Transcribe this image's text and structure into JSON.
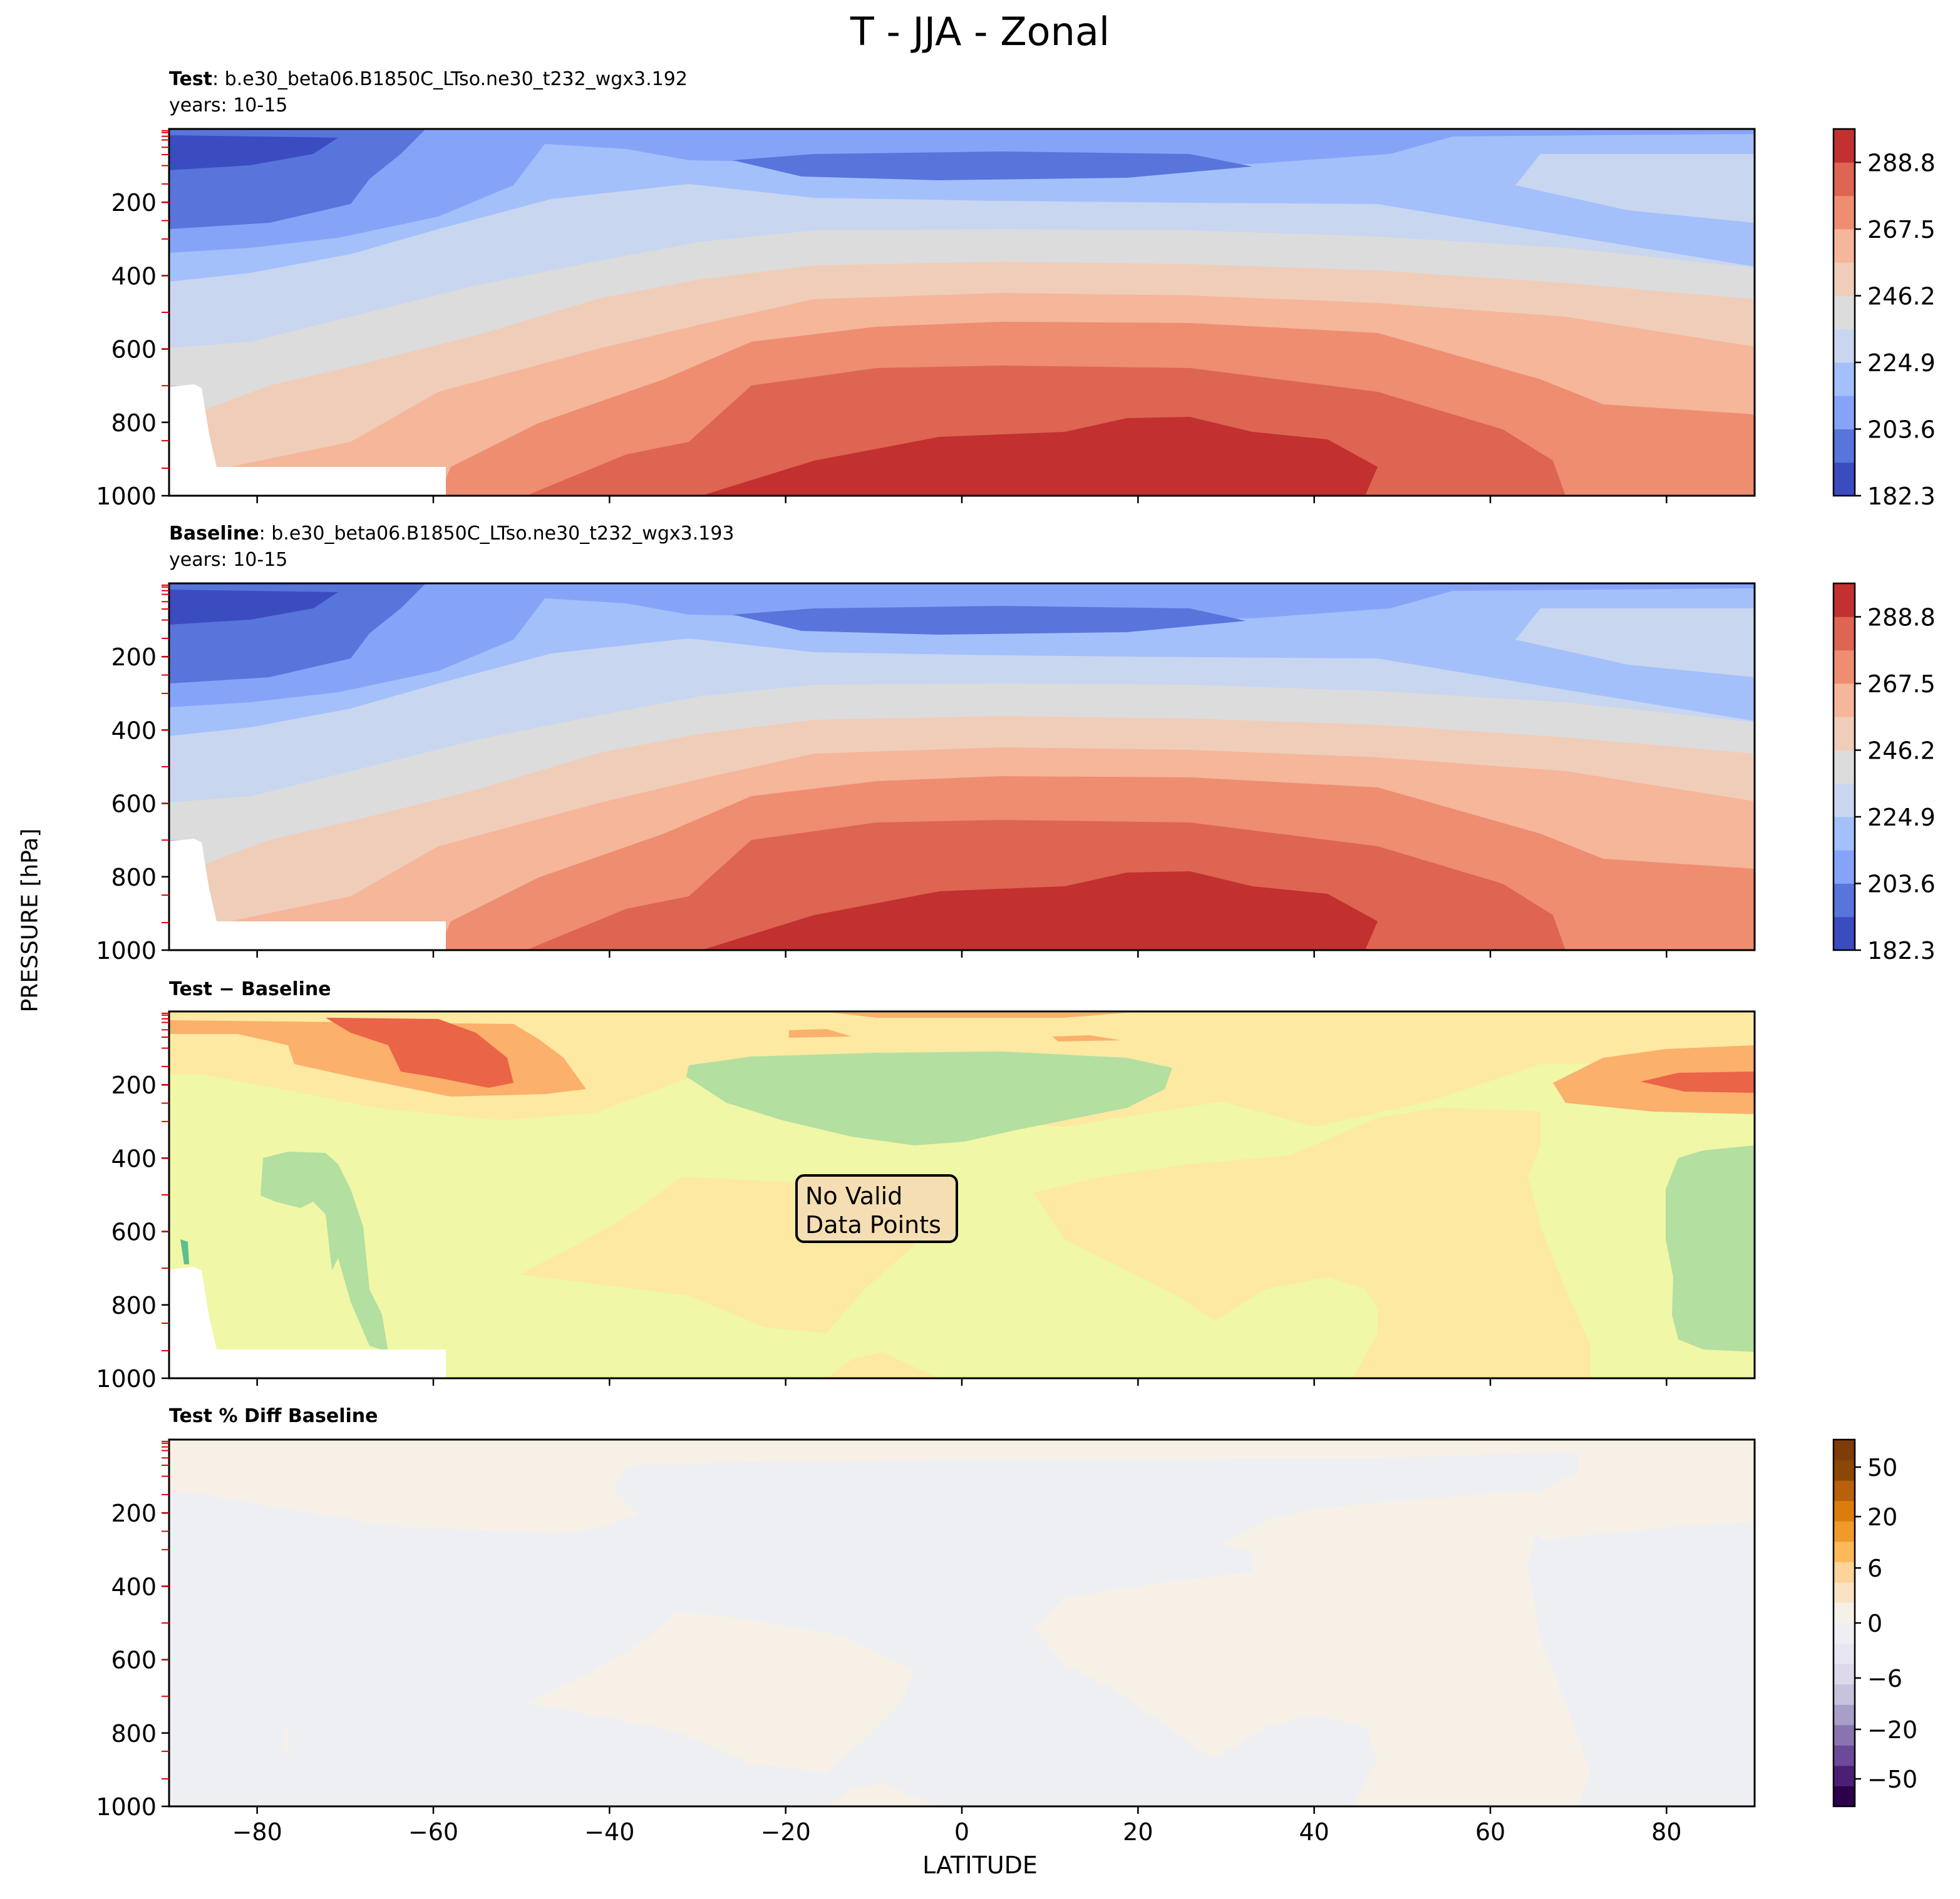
{
  "title": "T - JJA - Zonal",
  "ylabel": "PRESSURE [hPa]",
  "xlabel": "LATITUDE",
  "chart_data": [
    {
      "type": "heatmap",
      "panel": "test",
      "title_bold": "Test",
      "title_text": ": b.e30_beta06.B1850C_LTso.ne30_t232_wgx3.192",
      "subtitle": "years: 10-15",
      "xlim": [
        -90,
        90
      ],
      "ylim": [
        1000,
        0
      ],
      "x_ticks": [
        -80,
        -60,
        -40,
        -20,
        0,
        20,
        40,
        60,
        80
      ],
      "y_ticks": [
        200,
        400,
        600,
        800,
        1000
      ],
      "colorbar_ticks": [
        "182.3",
        "203.6",
        "224.9",
        "246.2",
        "267.5",
        "288.8"
      ],
      "colorbar_range": [
        182.3,
        299.5
      ],
      "colormap": "coolwarm"
    },
    {
      "type": "heatmap",
      "panel": "baseline",
      "title_bold": "Baseline",
      "title_text": ": b.e30_beta06.B1850C_LTso.ne30_t232_wgx3.193",
      "subtitle": "years: 10-15",
      "xlim": [
        -90,
        90
      ],
      "ylim": [
        1000,
        0
      ],
      "x_ticks": [
        -80,
        -60,
        -40,
        -20,
        0,
        20,
        40,
        60,
        80
      ],
      "y_ticks": [
        200,
        400,
        600,
        800,
        1000
      ],
      "colorbar_ticks": [
        "182.3",
        "203.6",
        "224.9",
        "246.2",
        "267.5",
        "288.8"
      ],
      "colorbar_range": [
        182.3,
        299.5
      ],
      "colormap": "coolwarm"
    },
    {
      "type": "heatmap",
      "panel": "diff",
      "title_bold": "Test − Baseline",
      "annotation": [
        "No Valid",
        "Data Points"
      ],
      "xlim": [
        -90,
        90
      ],
      "ylim": [
        1000,
        0
      ],
      "x_ticks": [
        -80,
        -60,
        -40,
        -20,
        0,
        20,
        40,
        60,
        80
      ],
      "y_ticks": [
        200,
        400,
        600,
        800,
        1000
      ]
    },
    {
      "type": "heatmap",
      "panel": "pctdiff",
      "title_bold": "Test % Diff Baseline",
      "xlim": [
        -90,
        90
      ],
      "ylim": [
        1000,
        0
      ],
      "x_ticks": [
        -80,
        -60,
        -40,
        -20,
        0,
        20,
        40,
        60,
        80
      ],
      "y_ticks": [
        200,
        400,
        600,
        800,
        1000
      ],
      "colorbar_ticks": [
        "50",
        "20",
        "6",
        "0",
        "−6",
        "−20",
        "−50"
      ],
      "colorbar_levels": [
        -70,
        -50,
        -40,
        -30,
        -20,
        -15,
        -10,
        -8,
        -6,
        -4,
        -2,
        0,
        2,
        4,
        6,
        8,
        10,
        15,
        20,
        30,
        40,
        50,
        70
      ],
      "colormap": "PuOr_r"
    }
  ],
  "colors": {
    "coolwarm": [
      "#3b4cc0",
      "#5875dc",
      "#86a4f7",
      "#a4c0fb",
      "#c8d6f0",
      "#dcdcdc",
      "#f0cdb9",
      "#f5b69a",
      "#ee8d6f",
      "#dd6552",
      "#c33030"
    ],
    "diff": {
      "green": "#b3dfa0",
      "lightyellow": "#f0f7a6",
      "peach": "#fde9a2",
      "orange": "#fbb06b",
      "red": "#ea6447",
      "teal": "#5bbf8f"
    },
    "pct": {
      "cream": "#f6f0e6",
      "grey": "#eeeff2"
    },
    "pct_colorbar": [
      "#2d004b",
      "#4b1f74",
      "#6b4a98",
      "#8875b0",
      "#a89ec8",
      "#c7c3dd",
      "#ddd9ea",
      "#e8e6f0",
      "#eeeff2",
      "#f6f0e6",
      "#fae3c5",
      "#fdd399",
      "#fbb95a",
      "#f09a2a",
      "#db7d0d",
      "#b9600a",
      "#8c4707",
      "#7f3b08"
    ]
  }
}
